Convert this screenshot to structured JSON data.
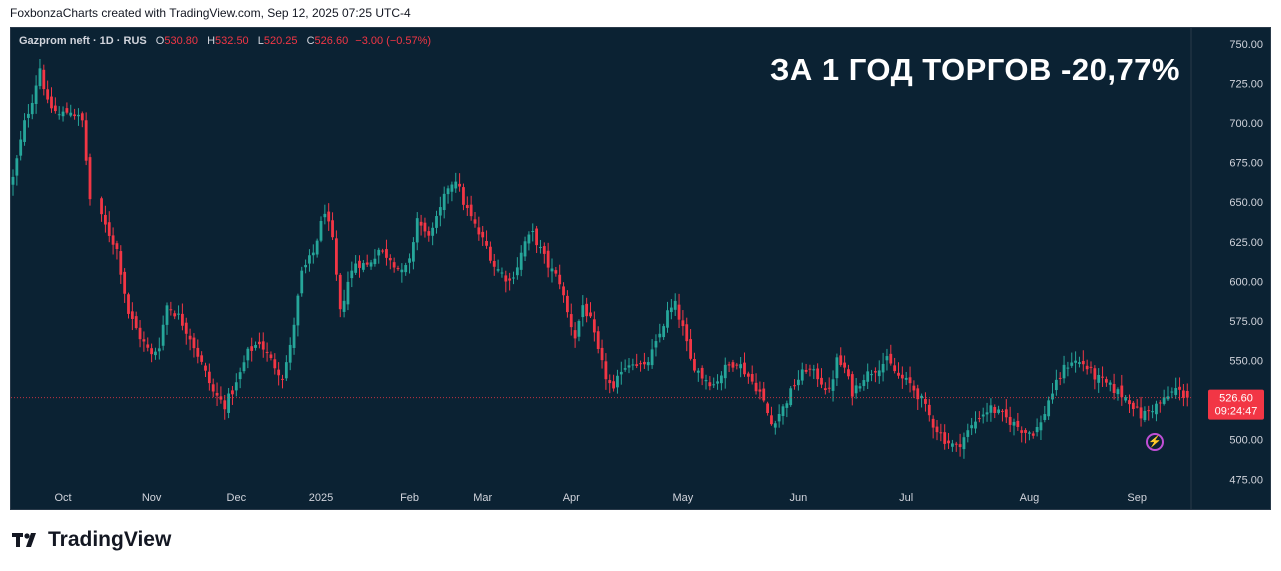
{
  "header": {
    "attribution": "FoxbonzaCharts created with TradingView.com, Sep 12, 2025 07:25 UTC-4"
  },
  "legend": {
    "symbol": "Gazprom neft · 1D · RUS",
    "open_label": "O",
    "open": "530.80",
    "high_label": "H",
    "high": "532.50",
    "low_label": "L",
    "low": "520.25",
    "close_label": "C",
    "close": "526.60",
    "change": "−3.00 (−0.57%)"
  },
  "headline": "ЗА 1 ГОД ТОРГОВ -20,77%",
  "price_tag": {
    "price": "526.60",
    "countdown": "09:24:47"
  },
  "footer": {
    "brand": "TradingView"
  },
  "icons": {
    "logo": "tradingview-logo-icon",
    "lightning": "lightning-icon"
  },
  "colors": {
    "background": "#0b2233",
    "up": "#26a69a",
    "down": "#f23645",
    "axis_text": "#d1d4dc"
  },
  "chart_data": {
    "type": "candlestick",
    "ylim": [
      455,
      760
    ],
    "yticks": [
      "750.00",
      "725.00",
      "700.00",
      "675.00",
      "650.00",
      "625.00",
      "600.00",
      "575.00",
      "550.00",
      "525.00",
      "500.00",
      "475.00"
    ],
    "xticks": [
      {
        "label": "Oct",
        "day": 13
      },
      {
        "label": "Nov",
        "day": 36
      },
      {
        "label": "Dec",
        "day": 58
      },
      {
        "label": "2025",
        "day": 80
      },
      {
        "label": "Feb",
        "day": 103
      },
      {
        "label": "Mar",
        "day": 122
      },
      {
        "label": "Apr",
        "day": 145
      },
      {
        "label": "May",
        "day": 174
      },
      {
        "label": "Jun",
        "day": 204
      },
      {
        "label": "Jul",
        "day": 232
      },
      {
        "label": "Aug",
        "day": 264
      },
      {
        "label": "Sep",
        "day": 292
      }
    ],
    "close_path": [
      [
        0,
        665
      ],
      [
        3,
        700
      ],
      [
        5,
        715
      ],
      [
        7,
        735
      ],
      [
        9,
        712
      ],
      [
        12,
        705
      ],
      [
        15,
        708
      ],
      [
        18,
        701
      ],
      [
        20,
        652
      ],
      [
        23,
        640
      ],
      [
        27,
        620
      ],
      [
        30,
        580
      ],
      [
        33,
        565
      ],
      [
        36,
        553
      ],
      [
        38,
        560
      ],
      [
        40,
        585
      ],
      [
        43,
        578
      ],
      [
        46,
        565
      ],
      [
        49,
        548
      ],
      [
        52,
        530
      ],
      [
        55,
        522
      ],
      [
        58,
        535
      ],
      [
        61,
        555
      ],
      [
        64,
        562
      ],
      [
        67,
        550
      ],
      [
        70,
        540
      ],
      [
        72,
        558
      ],
      [
        75,
        605
      ],
      [
        78,
        618
      ],
      [
        81,
        645
      ],
      [
        83,
        625
      ],
      [
        85,
        580
      ],
      [
        87,
        600
      ],
      [
        89,
        612
      ],
      [
        92,
        610
      ],
      [
        95,
        620
      ],
      [
        98,
        615
      ],
      [
        101,
        605
      ],
      [
        103,
        612
      ],
      [
        105,
        640
      ],
      [
        107,
        630
      ],
      [
        109,
        632
      ],
      [
        111,
        645
      ],
      [
        113,
        660
      ],
      [
        115,
        665
      ],
      [
        117,
        650
      ],
      [
        119,
        640
      ],
      [
        121,
        630
      ],
      [
        123,
        622
      ],
      [
        125,
        610
      ],
      [
        127,
        605
      ],
      [
        129,
        600
      ],
      [
        131,
        610
      ],
      [
        133,
        625
      ],
      [
        135,
        630
      ],
      [
        137,
        620
      ],
      [
        139,
        610
      ],
      [
        142,
        600
      ],
      [
        144,
        580
      ],
      [
        146,
        565
      ],
      [
        148,
        585
      ],
      [
        150,
        575
      ],
      [
        152,
        555
      ],
      [
        154,
        540
      ],
      [
        156,
        530
      ],
      [
        158,
        545
      ],
      [
        161,
        550
      ],
      [
        164,
        545
      ],
      [
        167,
        560
      ],
      [
        170,
        580
      ],
      [
        172,
        585
      ],
      [
        174,
        570
      ],
      [
        176,
        550
      ],
      [
        179,
        540
      ],
      [
        182,
        535
      ],
      [
        185,
        545
      ],
      [
        188,
        550
      ],
      [
        191,
        540
      ],
      [
        194,
        530
      ],
      [
        197,
        510
      ],
      [
        200,
        520
      ],
      [
        203,
        535
      ],
      [
        206,
        545
      ],
      [
        209,
        540
      ],
      [
        212,
        530
      ],
      [
        214,
        550
      ],
      [
        216,
        545
      ],
      [
        218,
        530
      ],
      [
        221,
        540
      ],
      [
        224,
        545
      ],
      [
        227,
        550
      ],
      [
        230,
        540
      ],
      [
        233,
        535
      ],
      [
        236,
        525
      ],
      [
        239,
        510
      ],
      [
        242,
        500
      ],
      [
        245,
        495
      ],
      [
        248,
        505
      ],
      [
        251,
        515
      ],
      [
        254,
        520
      ],
      [
        257,
        515
      ],
      [
        260,
        510
      ],
      [
        263,
        505
      ],
      [
        265,
        505
      ],
      [
        267,
        510
      ],
      [
        269,
        525
      ],
      [
        271,
        535
      ],
      [
        273,
        545
      ],
      [
        275,
        550
      ],
      [
        278,
        548
      ],
      [
        281,
        540
      ],
      [
        284,
        535
      ],
      [
        287,
        530
      ],
      [
        290,
        525
      ],
      [
        293,
        515
      ],
      [
        296,
        520
      ],
      [
        299,
        525
      ],
      [
        302,
        532
      ],
      [
        305,
        526.6
      ]
    ]
  }
}
